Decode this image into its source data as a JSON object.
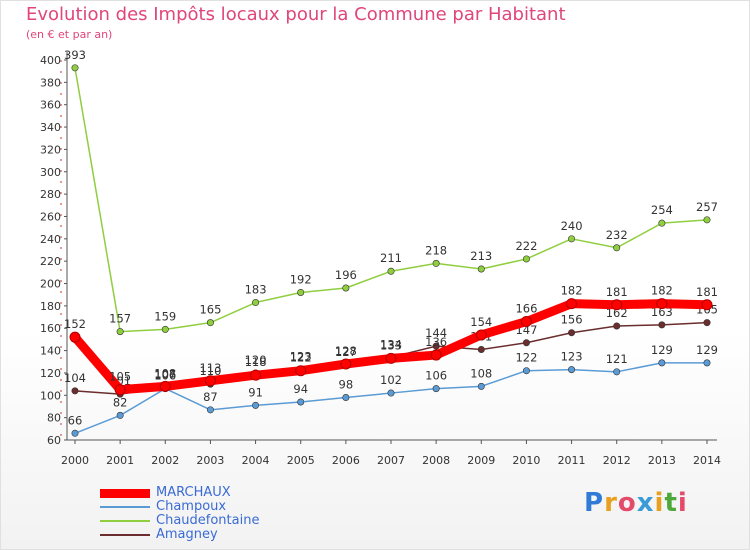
{
  "header": {
    "title": "Evolution des Impôts locaux pour la Commune par Habitant",
    "subtitle": "(en € et par an)"
  },
  "logo": {
    "text": "Proxiti",
    "letters": [
      "P",
      "r",
      "o",
      "x",
      "i",
      "t",
      "i"
    ],
    "colors": [
      "#2f7bd6",
      "#e9a020",
      "#e44a6a",
      "#3a9bd8",
      "#e9a020",
      "#4fa83a",
      "#e44a6a"
    ]
  },
  "chart_data": {
    "type": "line",
    "title": "Evolution des Impôts locaux pour la Commune par Habitant",
    "subtitle": "(en € et par an)",
    "xlabel": "",
    "ylabel": "",
    "ylim": [
      60,
      400
    ],
    "yticks": [
      60,
      80,
      100,
      120,
      140,
      160,
      180,
      200,
      220,
      240,
      260,
      280,
      300,
      320,
      340,
      360,
      380,
      400
    ],
    "grid": false,
    "legend": "bottom-left",
    "categories": [
      "2000",
      "2001",
      "2002",
      "2003",
      "2004",
      "2005",
      "2006",
      "2007",
      "2008",
      "2009",
      "2010",
      "2011",
      "2012",
      "2013",
      "2014"
    ],
    "series": [
      {
        "name": "Champoux",
        "color": "#5b9bd5",
        "values": [
          66,
          82,
          106,
          87,
          91,
          94,
          98,
          102,
          106,
          108,
          122,
          123,
          121,
          129,
          129
        ]
      },
      {
        "name": "Chaudefontaine",
        "color": "#8fce3f",
        "values": [
          393,
          157,
          159,
          165,
          183,
          192,
          196,
          211,
          218,
          213,
          222,
          240,
          232,
          254,
          257
        ]
      },
      {
        "name": "Amagney",
        "color": "#6b2d2d",
        "values": [
          104,
          101,
          107,
          110,
          120,
          123,
          127,
          134,
          144,
          141,
          147,
          156,
          162,
          163,
          165
        ]
      },
      {
        "name": "MARCHAUX",
        "color": "#ff0000",
        "bold": true,
        "values": [
          152,
          105,
          108,
          113,
          118,
          122,
          128,
          133,
          136,
          154,
          166,
          182,
          181,
          182,
          181
        ]
      }
    ],
    "legend_order": [
      "MARCHAUX",
      "Champoux",
      "Chaudefontaine",
      "Amagney"
    ]
  }
}
